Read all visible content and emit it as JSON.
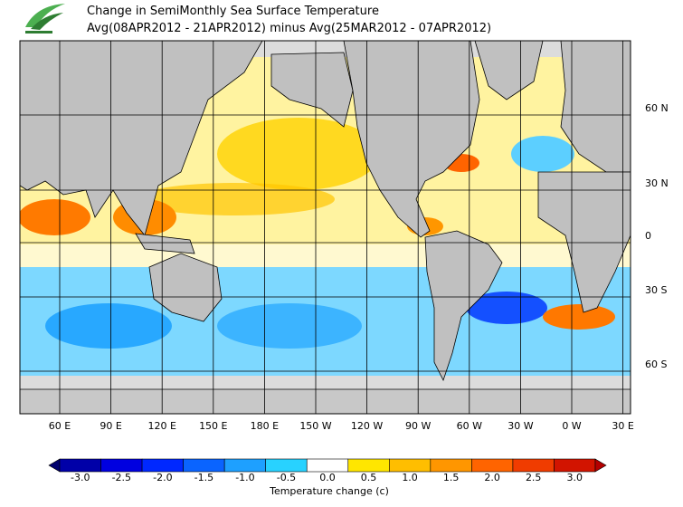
{
  "header": {
    "title": "Change in SemiMonthly Sea Surface Temperature",
    "subtitle": "Avg(08APR2012 - 21APR2012) minus Avg(25MAR2012 - 07APR2012)"
  },
  "map": {
    "lon_labels": [
      "60 E",
      "90 E",
      "120 E",
      "150 E",
      "180 E",
      "150 W",
      "120 W",
      "90 W",
      "60 W",
      "30 W",
      "0 W",
      "30 E"
    ],
    "lat_labels": [
      "60 N",
      "30 N",
      "0",
      "30 S",
      "60 S"
    ]
  },
  "colorbar": {
    "ticks": [
      "-3.0",
      "-2.5",
      "-2.0",
      "-1.5",
      "-1.0",
      "-0.5",
      "0.0",
      "0.5",
      "1.0",
      "1.5",
      "2.0",
      "2.5",
      "3.0"
    ],
    "colors": [
      "#00006e",
      "#0000a8",
      "#0000e0",
      "#0028ff",
      "#0a64ff",
      "#1ea0ff",
      "#28d2ff",
      "#ffffff",
      "#ffe600",
      "#ffbe00",
      "#ff9600",
      "#ff6400",
      "#f03c00",
      "#d21400",
      "#b40000"
    ],
    "label": "Temperature change  (c)"
  }
}
